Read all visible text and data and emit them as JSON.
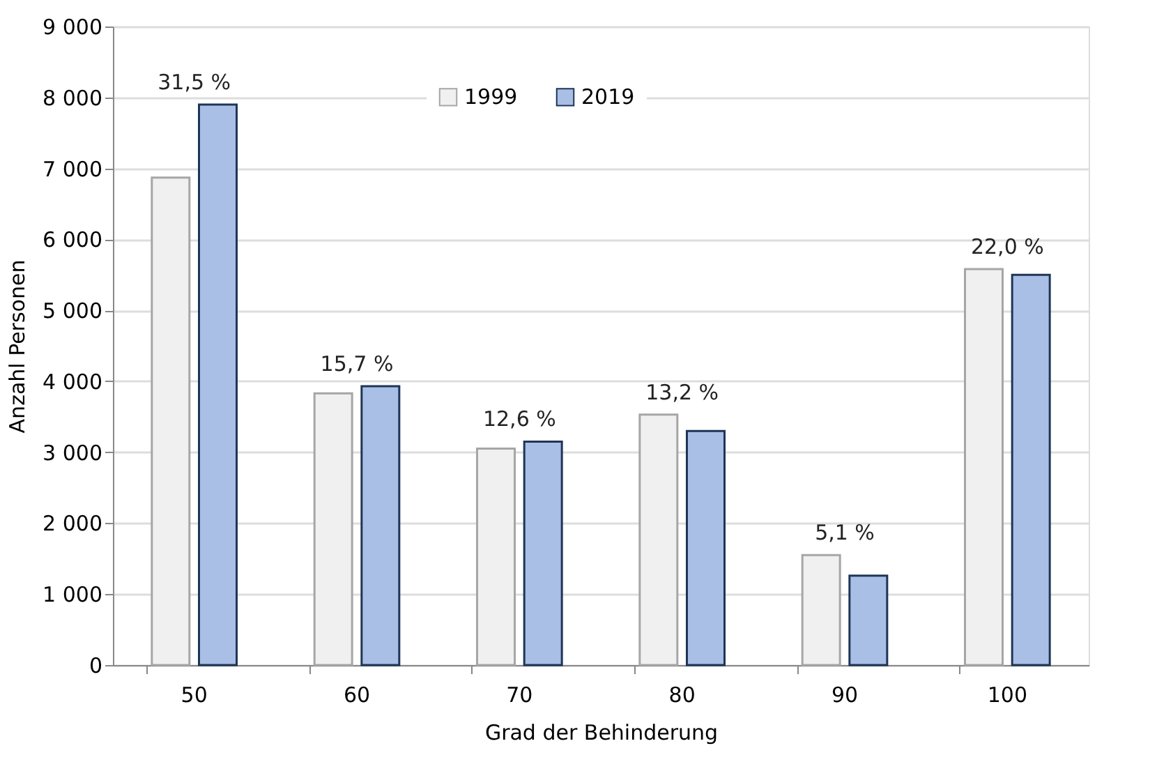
{
  "chart_data": {
    "type": "bar",
    "xlabel": "Grad der Behinderung",
    "ylabel": "Anzahl Personen",
    "categories": [
      "50",
      "60",
      "70",
      "80",
      "90",
      "100"
    ],
    "series": [
      {
        "name": "1999",
        "color": "#f0f0f0",
        "values": [
          6870,
          3830,
          3050,
          3530,
          1550,
          5580
        ]
      },
      {
        "name": "2019",
        "color": "#a9bfe6",
        "values": [
          7900,
          3930,
          3150,
          3300,
          1260,
          5500
        ]
      }
    ],
    "annotations": [
      {
        "text": "31,5 %",
        "x": "50",
        "y": 7900
      },
      {
        "text": "15,7 %",
        "x": "60",
        "y": 3930
      },
      {
        "text": "12,6 %",
        "x": "70",
        "y": 3150
      },
      {
        "text": "13,2 %",
        "x": "80",
        "y": 3530
      },
      {
        "text": "5,1 %",
        "x": "90",
        "y": 1550
      },
      {
        "text": "22,0 %",
        "x": "100",
        "y": 5580
      }
    ],
    "ylim": [
      0,
      9000
    ],
    "yticks": [
      {
        "value": 0,
        "label": "0"
      },
      {
        "value": 1000,
        "label": "1 000"
      },
      {
        "value": 2000,
        "label": "2 000"
      },
      {
        "value": 3000,
        "label": "3 000"
      },
      {
        "value": 4000,
        "label": "4 000"
      },
      {
        "value": 5000,
        "label": "5 000"
      },
      {
        "value": 6000,
        "label": "6 000"
      },
      {
        "value": 7000,
        "label": "7 000"
      },
      {
        "value": 8000,
        "label": "8 000"
      },
      {
        "value": 9000,
        "label": "9 000"
      }
    ],
    "grid": "y",
    "legend": "top"
  }
}
